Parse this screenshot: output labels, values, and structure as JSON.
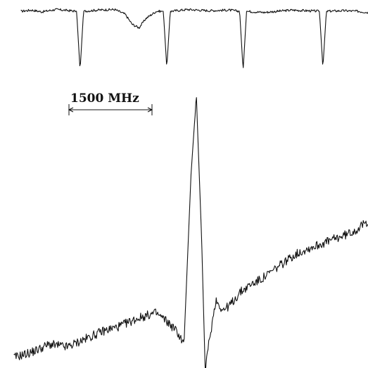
{
  "chart_data": [
    {
      "type": "line",
      "title": "",
      "xlabel": "",
      "ylabel": "",
      "grid": false,
      "legend": "none",
      "series": [
        {
          "points": [
            [
              0,
              0.0
            ],
            [
              0.03,
              0.02
            ],
            [
              0.06,
              -0.01
            ],
            [
              0.1,
              0.03
            ],
            [
              0.14,
              0.01
            ],
            [
              0.16,
              0.0
            ],
            [
              0.17,
              -1.0
            ],
            [
              0.18,
              0.0
            ],
            [
              0.22,
              0.02
            ],
            [
              0.27,
              0.03
            ],
            [
              0.3,
              -0.05
            ],
            [
              0.32,
              -0.22
            ],
            [
              0.34,
              -0.28
            ],
            [
              0.36,
              -0.12
            ],
            [
              0.39,
              0.0
            ],
            [
              0.41,
              0.0
            ],
            [
              0.42,
              -0.95
            ],
            [
              0.43,
              0.0
            ],
            [
              0.48,
              0.03
            ],
            [
              0.54,
              0.01
            ],
            [
              0.6,
              0.02
            ],
            [
              0.63,
              0.0
            ],
            [
              0.64,
              -1.0
            ],
            [
              0.65,
              0.0
            ],
            [
              0.7,
              -0.02
            ],
            [
              0.78,
              0.02
            ],
            [
              0.86,
              0.0
            ],
            [
              0.87,
              -0.95
            ],
            [
              0.88,
              0.0
            ],
            [
              0.93,
              0.01
            ],
            [
              0.97,
              0.0
            ],
            [
              1.0,
              -0.02
            ]
          ]
        }
      ]
    },
    {
      "type": "line",
      "title": "",
      "xlabel": "",
      "ylabel": "",
      "grid": false,
      "legend": "none",
      "series": [
        {
          "points": [
            [
              0.0,
              0.0
            ],
            [
              0.05,
              0.02
            ],
            [
              0.1,
              0.05
            ],
            [
              0.15,
              0.04
            ],
            [
              0.2,
              0.07
            ],
            [
              0.25,
              0.1
            ],
            [
              0.3,
              0.12
            ],
            [
              0.35,
              0.15
            ],
            [
              0.4,
              0.17
            ],
            [
              0.43,
              0.14
            ],
            [
              0.46,
              0.1
            ],
            [
              0.48,
              0.05
            ],
            [
              0.5,
              0.7
            ],
            [
              0.515,
              1.0
            ],
            [
              0.53,
              0.45
            ],
            [
              0.54,
              -0.05
            ],
            [
              0.55,
              0.05
            ],
            [
              0.57,
              0.22
            ],
            [
              0.59,
              0.18
            ],
            [
              0.61,
              0.2
            ],
            [
              0.64,
              0.25
            ],
            [
              0.67,
              0.28
            ],
            [
              0.7,
              0.3
            ],
            [
              0.73,
              0.33
            ],
            [
              0.76,
              0.36
            ],
            [
              0.79,
              0.39
            ],
            [
              0.82,
              0.41
            ],
            [
              0.86,
              0.43
            ],
            [
              0.9,
              0.45
            ],
            [
              0.94,
              0.47
            ],
            [
              0.97,
              0.49
            ],
            [
              1.0,
              0.52
            ]
          ]
        }
      ]
    }
  ],
  "scale_bar": {
    "label": "1500 MHz"
  }
}
